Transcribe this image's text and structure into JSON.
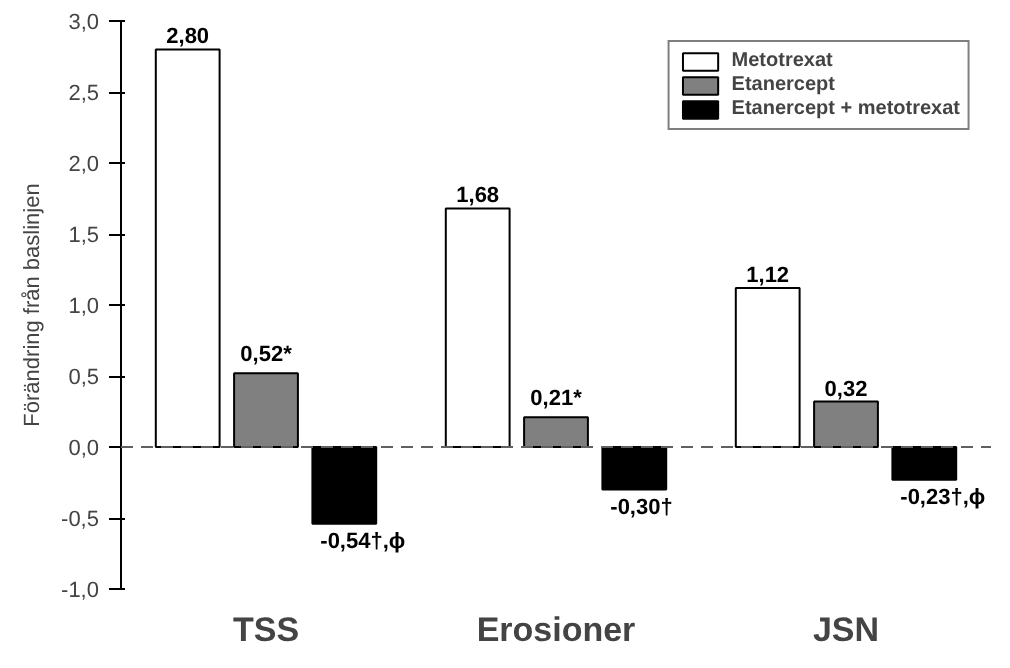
{
  "chart_data": {
    "type": "bar",
    "ylabel": "Förändring från baslinjen",
    "categories": [
      "TSS",
      "Erosioner",
      "JSN"
    ],
    "series": [
      {
        "name": "Metotrexat",
        "color": "#ffffff",
        "values": [
          2.8,
          1.68,
          1.12
        ],
        "value_labels": [
          "2,80",
          "1,68",
          "1,12"
        ]
      },
      {
        "name": "Etanercept",
        "color": "#808080",
        "values": [
          0.52,
          0.21,
          0.32
        ],
        "value_labels": [
          "0,52*",
          "0,21*",
          "0,32"
        ]
      },
      {
        "name": "Etanercept + metotrexat",
        "color": "#000000",
        "values": [
          -0.54,
          -0.3,
          -0.23
        ],
        "value_labels": [
          "-0,54†,ϕ",
          "-0,30†",
          "-0,23†,ϕ"
        ]
      }
    ],
    "ylim": [
      -1.0,
      3.0
    ],
    "yticks": [
      {
        "value": -1.0,
        "label": "-1,0"
      },
      {
        "value": -0.5,
        "label": "-0,5"
      },
      {
        "value": 0.0,
        "label": "0,0"
      },
      {
        "value": 0.5,
        "label": "0,5"
      },
      {
        "value": 1.0,
        "label": "1,0"
      },
      {
        "value": 1.5,
        "label": "1,5"
      },
      {
        "value": 2.0,
        "label": "2,0"
      },
      {
        "value": 2.5,
        "label": "2,5"
      },
      {
        "value": 3.0,
        "label": "3,0"
      }
    ],
    "ref_lines": [
      {
        "axis": "y",
        "value": 0.0,
        "line_style": "dashed",
        "color": "#606060"
      }
    ],
    "legend": "top right",
    "grid": false
  }
}
